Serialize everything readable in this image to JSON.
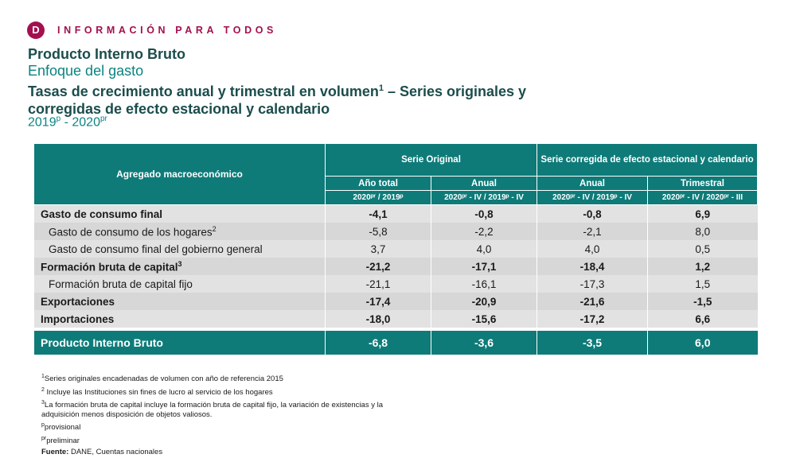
{
  "brand": {
    "logo": "D",
    "name": "INFORMACIÓN PARA TODOS"
  },
  "titles": {
    "t1": "Producto Interno Bruto",
    "t2": "Enfoque del gasto",
    "t3a": "Tasas de crecimiento anual y trimestral en volumen",
    "t3sup": "1",
    "t3b": " – Series originales y corregidas de efecto estacional y calendario",
    "t4a": "2019",
    "t4supa": "p",
    "t4b": " - 2020",
    "t4supb": "pr"
  },
  "table": {
    "agg_header": "Agregado macroeconómico",
    "group_original": "Serie Original",
    "group_corrected": "Serie corregida de efecto estacional y calendario",
    "sub_headers": [
      "Año total",
      "Anual",
      "Anual",
      "Trimestral"
    ],
    "period_headers": [
      "2020ᵖʳ / 2019ᵖ",
      "2020ᵖʳ - IV / 2019ᵖ - IV",
      "2020ᵖʳ - IV / 2019ᵖ - IV",
      "2020ᵖʳ - IV / 2020ᵖʳ - III"
    ],
    "rows": [
      {
        "label": "Gasto de consumo final",
        "sup": "",
        "values": [
          "-4,1",
          "-0,8",
          "-0,8",
          "6,9"
        ]
      },
      {
        "label": "Gasto de consumo de los hogares",
        "sup": "2",
        "values": [
          "-5,8",
          "-2,2",
          "-2,1",
          "8,0"
        ]
      },
      {
        "label": "Gasto de consumo final del gobierno general",
        "sup": "",
        "values": [
          "3,7",
          "4,0",
          "4,0",
          "0,5"
        ]
      },
      {
        "label": "Formación bruta de capital",
        "sup": "3",
        "values": [
          "-21,2",
          "-17,1",
          "-18,4",
          "1,2"
        ]
      },
      {
        "label": "Formación bruta de capital fijo",
        "sup": "",
        "values": [
          "-21,1",
          "-16,1",
          "-17,3",
          "1,5"
        ]
      },
      {
        "label": "Exportaciones",
        "sup": "",
        "values": [
          "-17,4",
          "-20,9",
          "-21,6",
          "-1,5"
        ]
      },
      {
        "label": "Importaciones",
        "sup": "",
        "values": [
          "-18,0",
          "-15,6",
          "-17,2",
          "6,6"
        ]
      }
    ],
    "total": {
      "label": "Producto Interno Bruto",
      "values": [
        "-6,8",
        "-3,6",
        "-3,5",
        "6,0"
      ]
    }
  },
  "notes": {
    "n1": "Series originales encadenadas de volumen con año de referencia 2015",
    "n2": " Incluye las Instituciones sin fines de lucro al servicio de los hogares",
    "n3": "La formación bruta de capital incluye la formación bruta de capital fijo, la variación de existencias y la adquisición menos disposición de objetos valiosos.",
    "p": "provisional",
    "pr": "preliminar",
    "source_label": "Fuente:",
    "source": " DANE, Cuentas nacionales"
  }
}
